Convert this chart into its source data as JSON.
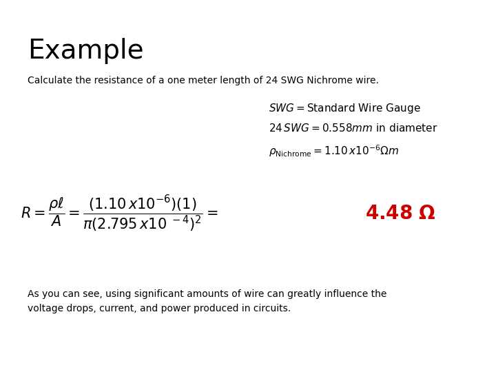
{
  "title": "Example",
  "subtitle": "Calculate the resistance of a one meter length of 24 SWG Nichrome wire.",
  "bg_color": "#ffffff",
  "title_fontsize": 28,
  "subtitle_fontsize": 10,
  "info_fontsize": 11,
  "formula_fontsize": 15,
  "result_fontsize": 20,
  "footer_fontsize": 10,
  "result_color": "#cc0000"
}
